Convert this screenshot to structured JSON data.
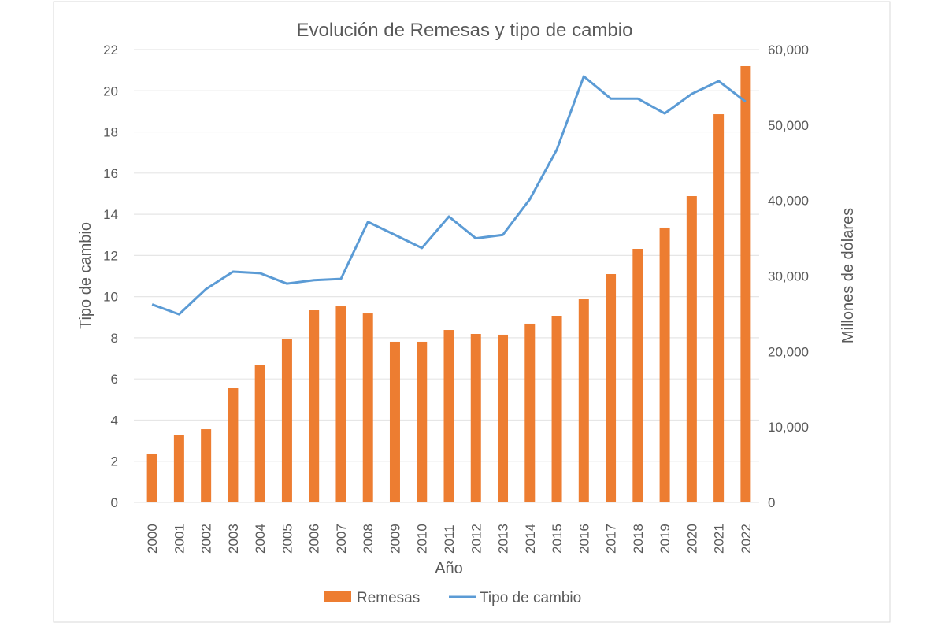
{
  "chart_data": {
    "type": "bar+line",
    "title": "Evolución de Remesas y tipo de cambio",
    "xlabel": "Año",
    "ylabel_left": "Tipo de cambio",
    "ylabel_right": "Millones de dólares",
    "categories": [
      "2000",
      "2001",
      "2002",
      "2003",
      "2004",
      "2005",
      "2006",
      "2007",
      "2008",
      "2009",
      "2010",
      "2011",
      "2012",
      "2013",
      "2014",
      "2015",
      "2016",
      "2017",
      "2018",
      "2019",
      "2020",
      "2021",
      "2022"
    ],
    "ylim_left": [
      0,
      22
    ],
    "yticks_left": [
      "0",
      "2",
      "4",
      "6",
      "8",
      "10",
      "12",
      "14",
      "16",
      "18",
      "20",
      "22"
    ],
    "ylim_right": [
      0,
      60000
    ],
    "yticks_right": [
      "0",
      "10,000",
      "20,000",
      "30,000",
      "40,000",
      "50,000",
      "60,000"
    ],
    "grid": true,
    "legend_position": "bottom",
    "series": [
      {
        "name": "Remesas",
        "type": "bar",
        "axis": "right",
        "color": "#ED7D31",
        "values": [
          6470,
          8870,
          9700,
          15130,
          18260,
          21600,
          25460,
          25980,
          25040,
          21290,
          21290,
          22850,
          22330,
          22230,
          23690,
          24730,
          26920,
          30260,
          33600,
          36420,
          40590,
          51440,
          57810
        ]
      },
      {
        "name": "Tipo de cambio",
        "type": "line",
        "axis": "left",
        "color": "#5B9BD5",
        "values": [
          9.62,
          9.14,
          10.37,
          11.21,
          11.14,
          10.63,
          10.8,
          10.86,
          13.63,
          13.0,
          12.36,
          13.89,
          12.83,
          13.0,
          14.73,
          17.14,
          20.7,
          19.62,
          19.62,
          18.9,
          19.85,
          20.47,
          19.47
        ]
      }
    ]
  }
}
